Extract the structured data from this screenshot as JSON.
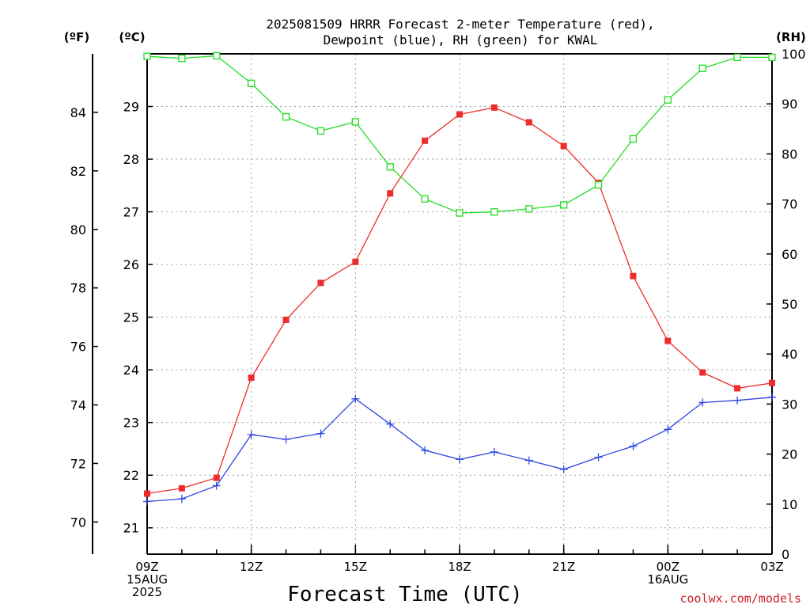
{
  "chart_data": {
    "type": "line",
    "title_lines": [
      "2025081509 HRRR Forecast 2-meter Temperature (red),",
      "Dewpoint (blue), RH (green) for KWAL"
    ],
    "xlabel": "Forecast Time (UTC)",
    "x_hours": [
      0,
      1,
      2,
      3,
      4,
      5,
      6,
      7,
      8,
      9,
      10,
      11,
      12,
      13,
      14,
      15,
      16,
      17,
      18
    ],
    "x_ticks": [
      {
        "hour": 0,
        "lines": [
          "09Z",
          "15AUG",
          "2025"
        ]
      },
      {
        "hour": 3,
        "lines": [
          "12Z"
        ]
      },
      {
        "hour": 6,
        "lines": [
          "15Z"
        ]
      },
      {
        "hour": 9,
        "lines": [
          "18Z"
        ]
      },
      {
        "hour": 12,
        "lines": [
          "21Z"
        ]
      },
      {
        "hour": 15,
        "lines": [
          "00Z",
          "16AUG"
        ]
      },
      {
        "hour": 18,
        "lines": [
          "03Z"
        ]
      }
    ],
    "axes": {
      "fahrenheit": {
        "label": "(ºF)",
        "ticks": [
          "70",
          "72",
          "74",
          "76",
          "78",
          "80",
          "82",
          "84"
        ]
      },
      "celsius": {
        "label": "(ºC)",
        "ticks": [
          "21",
          "22",
          "23",
          "24",
          "25",
          "26",
          "27",
          "28",
          "29"
        ],
        "ylim": [
          20.5,
          30
        ]
      },
      "rh": {
        "label": "(RH)",
        "ticks": [
          "0",
          "10",
          "20",
          "30",
          "40",
          "50",
          "60",
          "70",
          "80",
          "90",
          "100"
        ],
        "ylim": [
          0,
          100
        ]
      }
    },
    "grid": true,
    "series": [
      {
        "key": "temperature",
        "color": "#ee2c2c",
        "marker": "filled-square",
        "axis": "celsius",
        "values": [
          21.65,
          21.75,
          21.95,
          23.85,
          24.95,
          25.65,
          26.05,
          27.35,
          28.35,
          28.85,
          28.98,
          28.7,
          28.25,
          27.55,
          25.78,
          24.55,
          23.95,
          23.65,
          23.75
        ]
      },
      {
        "key": "dewpoint",
        "color": "#2e46e0",
        "marker": "plus",
        "axis": "celsius",
        "values": [
          21.5,
          21.55,
          21.8,
          22.77,
          22.68,
          22.79,
          23.45,
          22.97,
          22.47,
          22.3,
          22.44,
          22.28,
          22.11,
          22.34,
          22.55,
          22.87,
          23.38,
          23.42,
          23.48
        ]
      },
      {
        "key": "rh",
        "color": "#22dd22",
        "marker": "open-square",
        "axis": "rh",
        "values": [
          99.5,
          99.1,
          99.6,
          94.1,
          87.4,
          84.6,
          86.4,
          77.4,
          71.0,
          68.2,
          68.4,
          69.0,
          69.8,
          73.8,
          83.0,
          90.8,
          97.1,
          99.3,
          99.3
        ]
      }
    ]
  },
  "footer": {
    "credit": "coolwx.com/models"
  },
  "colors": {
    "credit": "#cc2222",
    "grid": "#a0a0a0"
  }
}
